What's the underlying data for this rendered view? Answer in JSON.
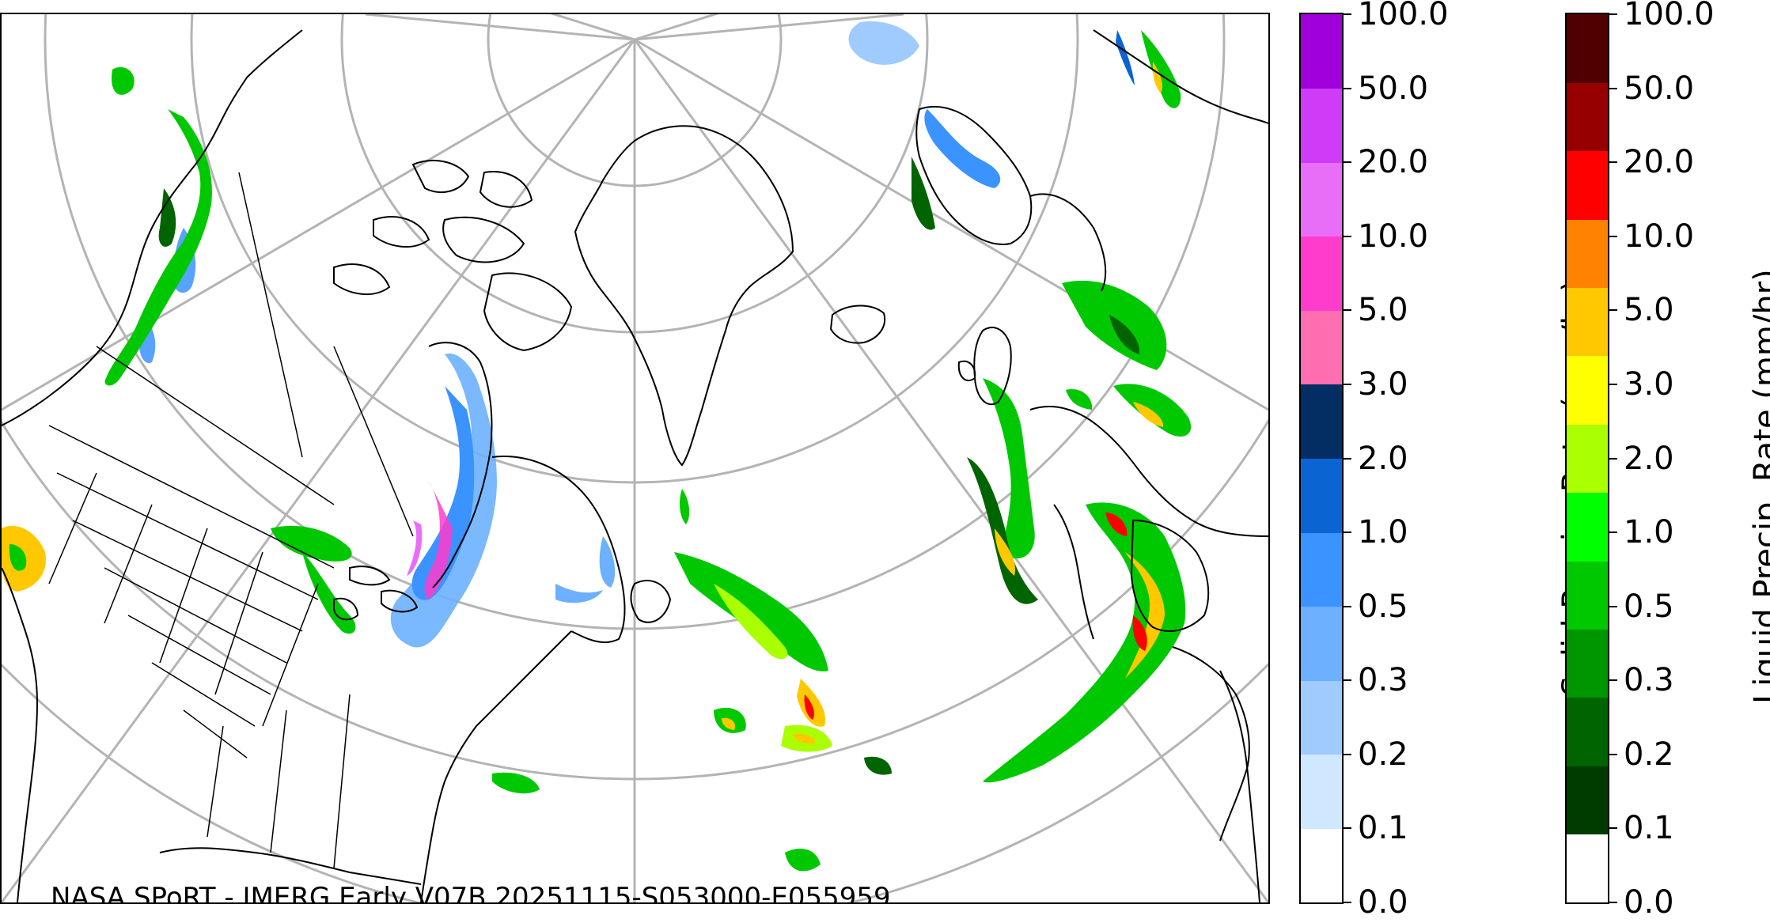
{
  "credit": "NASA SPoRT - IMERG Early V07B 20251115-S053000-E055959",
  "colorbars": {
    "solid": {
      "title": "Solid Precip. Rate (mm/hr)",
      "ticks": [
        "0.0",
        "0.1",
        "0.2",
        "0.3",
        "0.5",
        "1.0",
        "2.0",
        "3.0",
        "5.0",
        "10.0",
        "20.0",
        "50.0",
        "100.0"
      ],
      "colors": [
        "#ffffff",
        "#cfe7ff",
        "#9fcbff",
        "#6cb0ff",
        "#3b93ff",
        "#0a64d2",
        "#022e63",
        "#ff6eb0",
        "#ff3ccc",
        "#e86ef8",
        "#cf3cf8",
        "#a000dc"
      ]
    },
    "liquid": {
      "title": "Liquid Precip. Rate (mm/hr)",
      "ticks": [
        "0.0",
        "0.1",
        "0.2",
        "0.3",
        "0.5",
        "1.0",
        "2.0",
        "3.0",
        "5.0",
        "10.0",
        "20.0",
        "50.0",
        "100.0"
      ],
      "colors": [
        "#ffffff",
        "#003c00",
        "#006400",
        "#009600",
        "#00c800",
        "#00ff00",
        "#aaff00",
        "#ffff00",
        "#ffc800",
        "#ff8200",
        "#ff0000",
        "#960000",
        "#500000"
      ]
    }
  },
  "map": {
    "graticule_color": "#b4b4b4",
    "coastline_color": "#000000",
    "snow_light": "#6cb0ff",
    "snow_mid": "#3b93ff",
    "snow_heavy": "#ff3ccc",
    "rain_light": "#00c800",
    "rain_dark": "#006400",
    "rain_mid": "#aaff00",
    "rain_heavy": "#ffc800",
    "rain_extreme": "#ff0000"
  }
}
